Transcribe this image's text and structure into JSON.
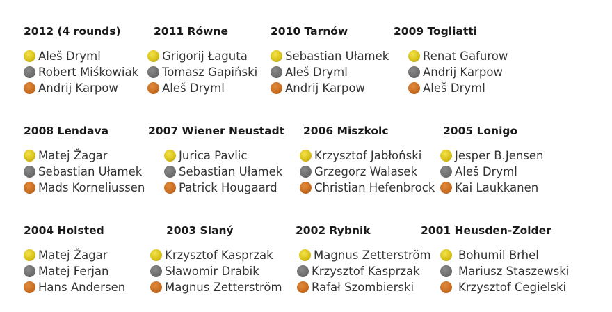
{
  "championships": [
    {
      "title": "2012 (4 rounds)",
      "medalists": [
        {
          "medal": "gold",
          "name": "Aleš Dryml"
        },
        {
          "medal": "silver",
          "name": "Robert Miśkowiak"
        },
        {
          "medal": "bronze",
          "name": "Andrij Karpow"
        }
      ]
    },
    {
      "title": "2011 Równe",
      "medalists": [
        {
          "medal": "gold",
          "name": "Grigorij Łaguta"
        },
        {
          "medal": "silver",
          "name": "Tomasz Gapiński"
        },
        {
          "medal": "bronze",
          "name": "Aleš Dryml"
        }
      ]
    },
    {
      "title": "2010 Tarnów",
      "medalists": [
        {
          "medal": "gold",
          "name": "Sebastian Ułamek"
        },
        {
          "medal": "silver",
          "name": "Aleš Dryml"
        },
        {
          "medal": "bronze",
          "name": "Andrij Karpow"
        }
      ]
    },
    {
      "title": "2009 Togliatti",
      "medalists": [
        {
          "medal": "gold",
          "name": "Renat Gafurow"
        },
        {
          "medal": "silver",
          "name": "Andrij Karpow"
        },
        {
          "medal": "bronze",
          "name": "Aleš Dryml"
        }
      ]
    },
    {
      "title": "2008 Lendava",
      "medalists": [
        {
          "medal": "gold",
          "name": "Matej Žagar"
        },
        {
          "medal": "silver",
          "name": "Sebastian Ułamek"
        },
        {
          "medal": "bronze",
          "name": "Mads Korneliussen"
        }
      ]
    },
    {
      "title": "2007 Wiener Neustadt",
      "medalists": [
        {
          "medal": "gold",
          "name": "Jurica Pavlic"
        },
        {
          "medal": "silver",
          "name": "Sebastian Ułamek"
        },
        {
          "medal": "bronze",
          "name": "Patrick Hougaard"
        }
      ]
    },
    {
      "title": "2006 Miszkolc",
      "medalists": [
        {
          "medal": "gold",
          "name": "Krzysztof Jabłoński"
        },
        {
          "medal": "silver",
          "name": "Grzegorz Walasek"
        },
        {
          "medal": "bronze",
          "name": "Christian Hefenbrock"
        }
      ]
    },
    {
      "title": "2005 Lonigo",
      "medalists": [
        {
          "medal": "gold",
          "name": "Jesper B.Jensen"
        },
        {
          "medal": "silver",
          "name": "Aleš Dryml"
        },
        {
          "medal": "bronze",
          "name": "Kai Laukkanen"
        }
      ]
    },
    {
      "title": "2004 Holsted",
      "medalists": [
        {
          "medal": "gold",
          "name": "Matej Žagar"
        },
        {
          "medal": "silver",
          "name": "Matej Ferjan"
        },
        {
          "medal": "bronze",
          "name": "Hans Andersen"
        }
      ]
    },
    {
      "title": "2003 Slaný",
      "medalists": [
        {
          "medal": "gold",
          "name": "Krzysztof Kasprzak"
        },
        {
          "medal": "silver",
          "name": "Sławomir Drabik"
        },
        {
          "medal": "bronze",
          "name": "Magnus Zetterström"
        }
      ]
    },
    {
      "title": "2002 Rybnik",
      "medalists": [
        {
          "medal": "gold",
          "name": "Magnus Zetterström"
        },
        {
          "medal": "silver",
          "name": "Krzysztof Kasprzak"
        },
        {
          "medal": "bronze",
          "name": "Rafał Szombierski"
        }
      ]
    },
    {
      "title": "2001 Heusden-Zolder",
      "medalists": [
        {
          "medal": "gold",
          "name": "Bohumil Brhel"
        },
        {
          "medal": "silver",
          "name": "Mariusz Staszewski"
        },
        {
          "medal": "bronze",
          "name": "Krzysztof Cegielski"
        }
      ]
    }
  ],
  "medal_colors": {
    "gold": "#d9c21a",
    "silver": "#6f6f6f",
    "bronze": "#c96e22"
  }
}
